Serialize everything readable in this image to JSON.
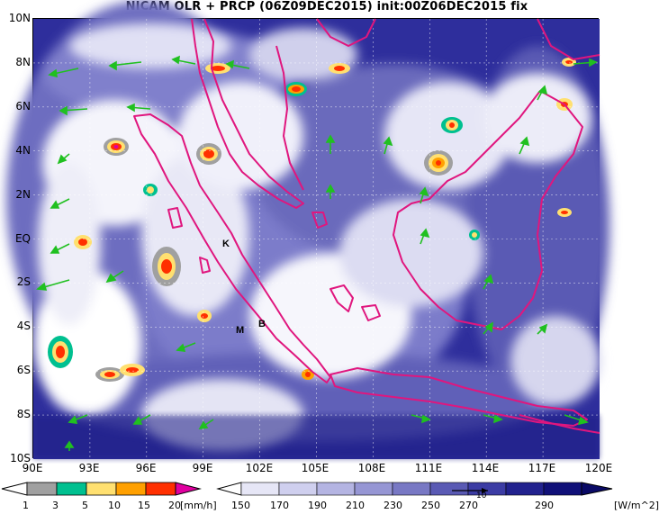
{
  "title": "NICAM OLR + PRCP (06Z09DEC2015) init:00Z06DEC2015 fix",
  "lat_labels": [
    "10N",
    "8N",
    "6N",
    "4N",
    "2N",
    "EQ",
    "2S",
    "4S",
    "6S",
    "8S",
    "10S"
  ],
  "lon_labels": [
    "90E",
    "93E",
    "96E",
    "99E",
    "102E",
    "105E",
    "108E",
    "111E",
    "114E",
    "117E",
    "120E"
  ],
  "map_markers": [
    "K",
    "M",
    "B"
  ],
  "precip_legend": {
    "ticks": [
      "1",
      "3",
      "5",
      "10",
      "15",
      "20"
    ],
    "unit": "[mm/h]",
    "colors": [
      "#a0a0a0",
      "#00c090",
      "#ffe070",
      "#ffa000",
      "#ff3000",
      "#e000a0"
    ]
  },
  "olr_legend": {
    "ticks": [
      "150",
      "170",
      "190",
      "210",
      "230",
      "250",
      "270",
      "290"
    ],
    "unit": "[W/m^2]",
    "colors": [
      "#ffffff",
      "#e6e6f6",
      "#cfcfee",
      "#b4b4e2",
      "#9696d4",
      "#7878c4",
      "#5a5ab4",
      "#3c3ca4",
      "#22228e",
      "#101078"
    ]
  },
  "vector_reference": "10",
  "colors": {
    "coastline": "#e0167e",
    "wind_vector": "#20c020",
    "olr_low": "#ffffff",
    "olr_high": "#14147a"
  }
}
